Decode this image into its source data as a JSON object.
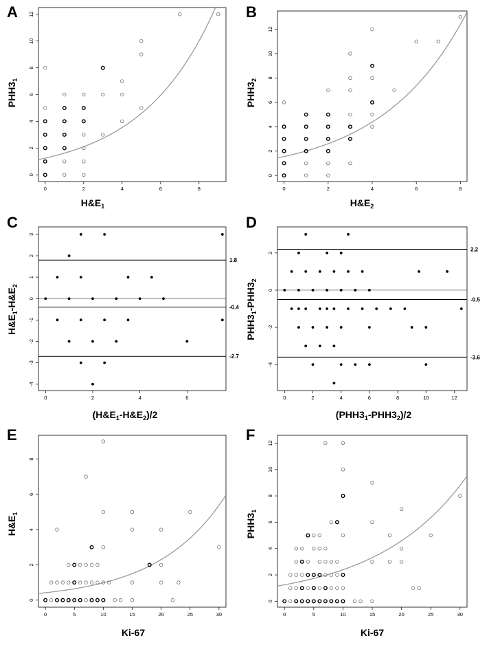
{
  "chart_data": [
    {
      "id": "A",
      "type": "scatter",
      "panel_label": "A",
      "xlabel": {
        "main": "H&E",
        "sub": "1"
      },
      "ylabel": {
        "main": "PHH3",
        "sub": "1"
      },
      "xlim": [
        -0.35,
        9.4
      ],
      "ylim": [
        -0.5,
        12.5
      ],
      "xticks": [
        0,
        2,
        4,
        6,
        8
      ],
      "yticks": [
        0,
        2,
        4,
        6,
        8,
        10,
        12
      ],
      "points": [
        [
          0,
          0
        ],
        [
          0,
          1
        ],
        [
          0,
          2
        ],
        [
          0,
          3
        ],
        [
          0,
          4
        ],
        [
          0,
          5
        ],
        [
          0,
          8
        ],
        [
          1,
          0
        ],
        [
          1,
          1
        ],
        [
          1,
          2
        ],
        [
          1,
          3
        ],
        [
          1,
          4
        ],
        [
          1,
          5
        ],
        [
          1,
          6
        ],
        [
          2,
          0
        ],
        [
          2,
          1
        ],
        [
          2,
          2
        ],
        [
          2,
          3
        ],
        [
          2,
          4
        ],
        [
          2,
          5
        ],
        [
          2,
          6
        ],
        [
          3,
          3
        ],
        [
          3,
          6
        ],
        [
          3,
          8
        ],
        [
          4,
          4
        ],
        [
          4,
          6
        ],
        [
          4,
          7
        ],
        [
          5,
          5
        ],
        [
          5,
          9
        ],
        [
          5,
          10
        ],
        [
          7,
          12
        ],
        [
          9,
          12
        ]
      ],
      "bold_points": [
        [
          0,
          0
        ],
        [
          0,
          1
        ],
        [
          0,
          2
        ],
        [
          0,
          3
        ],
        [
          0,
          4
        ],
        [
          1,
          2
        ],
        [
          1,
          3
        ],
        [
          1,
          4
        ],
        [
          1,
          5
        ],
        [
          2,
          4
        ],
        [
          2,
          5
        ],
        [
          3,
          8
        ]
      ],
      "curve": {
        "a": 1.25,
        "b": 0.26
      }
    },
    {
      "id": "B",
      "type": "scatter",
      "panel_label": "B",
      "xlabel": {
        "main": "H&E",
        "sub": "2"
      },
      "ylabel": {
        "main": "PHH3",
        "sub": "2"
      },
      "xlim": [
        -0.3,
        8.3
      ],
      "ylim": [
        -0.5,
        13.5
      ],
      "xticks": [
        0,
        2,
        4,
        6,
        8
      ],
      "yticks": [
        0,
        2,
        4,
        6,
        8,
        10,
        12
      ],
      "points": [
        [
          0,
          0
        ],
        [
          0,
          1
        ],
        [
          0,
          2
        ],
        [
          0,
          3
        ],
        [
          0,
          4
        ],
        [
          0,
          6
        ],
        [
          1,
          0
        ],
        [
          1,
          1
        ],
        [
          1,
          2
        ],
        [
          1,
          3
        ],
        [
          1,
          4
        ],
        [
          1,
          5
        ],
        [
          2,
          0
        ],
        [
          2,
          1
        ],
        [
          2,
          2
        ],
        [
          2,
          3
        ],
        [
          2,
          4
        ],
        [
          2,
          5
        ],
        [
          2,
          7
        ],
        [
          3,
          1
        ],
        [
          3,
          3
        ],
        [
          3,
          4
        ],
        [
          3,
          5
        ],
        [
          3,
          7
        ],
        [
          3,
          8
        ],
        [
          3,
          10
        ],
        [
          4,
          4
        ],
        [
          4,
          5
        ],
        [
          4,
          6
        ],
        [
          4,
          8
        ],
        [
          4,
          9
        ],
        [
          4,
          12
        ],
        [
          5,
          7
        ],
        [
          6,
          11
        ],
        [
          7,
          11
        ],
        [
          8,
          13
        ]
      ],
      "bold_points": [
        [
          0,
          0
        ],
        [
          0,
          1
        ],
        [
          0,
          2
        ],
        [
          0,
          3
        ],
        [
          0,
          4
        ],
        [
          1,
          2
        ],
        [
          1,
          3
        ],
        [
          1,
          4
        ],
        [
          1,
          5
        ],
        [
          2,
          2
        ],
        [
          2,
          3
        ],
        [
          2,
          4
        ],
        [
          2,
          5
        ],
        [
          3,
          3
        ],
        [
          3,
          4
        ],
        [
          4,
          6
        ],
        [
          4,
          9
        ]
      ],
      "curve": {
        "a": 1.55,
        "b": 0.26
      }
    },
    {
      "id": "C",
      "type": "bland_altman",
      "panel_label": "C",
      "xlabel": {
        "parts": [
          "(H&E",
          "1",
          "-H&E",
          "2",
          ")/2"
        ]
      },
      "ylabel": {
        "parts": [
          "H&E",
          "1",
          "-H&E",
          "2"
        ]
      },
      "xlim": [
        -0.3,
        7.65
      ],
      "ylim": [
        -4.3,
        3.35
      ],
      "xticks": [
        0,
        2,
        4,
        6
      ],
      "yticks": [
        -4,
        -3,
        -2,
        -1,
        0,
        1,
        2,
        3
      ],
      "zero_line": 0,
      "ref_lines": [
        {
          "y": 1.8,
          "label": "1.8"
        },
        {
          "y": -0.4,
          "label": "-0.4"
        },
        {
          "y": -2.7,
          "label": "-2.7"
        }
      ],
      "points": [
        [
          0,
          0
        ],
        [
          0.5,
          1
        ],
        [
          0.5,
          -1
        ],
        [
          1,
          2
        ],
        [
          1,
          0
        ],
        [
          1,
          -2
        ],
        [
          1.5,
          3
        ],
        [
          1.5,
          1
        ],
        [
          1.5,
          -1
        ],
        [
          1.5,
          -3
        ],
        [
          2,
          0
        ],
        [
          2,
          -2
        ],
        [
          2,
          -4
        ],
        [
          2.5,
          3
        ],
        [
          2.5,
          -1
        ],
        [
          2.5,
          -3
        ],
        [
          3,
          0
        ],
        [
          3,
          -2
        ],
        [
          3.5,
          1
        ],
        [
          3.5,
          -1
        ],
        [
          4,
          0
        ],
        [
          4.5,
          1
        ],
        [
          5,
          0
        ],
        [
          6,
          -2
        ],
        [
          7.5,
          3
        ],
        [
          7.5,
          -1
        ]
      ]
    },
    {
      "id": "D",
      "type": "bland_altman",
      "panel_label": "D",
      "xlabel": {
        "parts": [
          "(PHH3",
          "1",
          "-PHH3",
          "2",
          ")/2"
        ]
      },
      "ylabel": {
        "parts": [
          "PHH3",
          "1",
          "-PHH3",
          "2"
        ]
      },
      "xlim": [
        -0.5,
        12.9
      ],
      "ylim": [
        -5.4,
        3.4
      ],
      "xticks": [
        0,
        2,
        4,
        6,
        8,
        10,
        12
      ],
      "yticks": [
        -4,
        -2,
        0,
        2
      ],
      "zero_line": 0,
      "ref_lines": [
        {
          "y": 2.2,
          "label": "2.2"
        },
        {
          "y": -0.5,
          "label": "-0.5"
        },
        {
          "y": -3.6,
          "label": "-3.6"
        }
      ],
      "points": [
        [
          0,
          0
        ],
        [
          0.5,
          1
        ],
        [
          0.5,
          -1
        ],
        [
          1,
          2
        ],
        [
          1,
          0
        ],
        [
          1,
          -1
        ],
        [
          1,
          -2
        ],
        [
          1.5,
          3
        ],
        [
          1.5,
          1
        ],
        [
          1.5,
          -1
        ],
        [
          1.5,
          -3
        ],
        [
          2,
          0
        ],
        [
          2,
          -2
        ],
        [
          2,
          -4
        ],
        [
          2.5,
          1
        ],
        [
          2.5,
          -1
        ],
        [
          2.5,
          -3
        ],
        [
          3,
          2
        ],
        [
          3,
          0
        ],
        [
          3,
          -1
        ],
        [
          3,
          -2
        ],
        [
          3.5,
          1
        ],
        [
          3.5,
          -1
        ],
        [
          3.5,
          -3
        ],
        [
          3.5,
          -5
        ],
        [
          4,
          2
        ],
        [
          4,
          0
        ],
        [
          4,
          -2
        ],
        [
          4,
          -4
        ],
        [
          4.5,
          3
        ],
        [
          4.5,
          1
        ],
        [
          4.5,
          -1
        ],
        [
          5,
          0
        ],
        [
          5,
          -4
        ],
        [
          5.5,
          1
        ],
        [
          5.5,
          -1
        ],
        [
          6,
          0
        ],
        [
          6,
          -2
        ],
        [
          6,
          -4
        ],
        [
          6.5,
          -1
        ],
        [
          7.5,
          -1
        ],
        [
          8.5,
          -1
        ],
        [
          9,
          -2
        ],
        [
          9.5,
          1
        ],
        [
          10,
          -2
        ],
        [
          10,
          -4
        ],
        [
          11.5,
          1
        ],
        [
          12.5,
          -1
        ]
      ]
    },
    {
      "id": "E",
      "type": "scatter",
      "panel_label": "E",
      "xlabel": {
        "main": "Ki-67",
        "sub": ""
      },
      "ylabel": {
        "main": "H&E",
        "sub": "1"
      },
      "xlim": [
        -1.2,
        31.2
      ],
      "ylim": [
        -0.4,
        9.35
      ],
      "xticks": [
        0,
        5,
        10,
        15,
        20,
        25,
        30
      ],
      "yticks": [
        0,
        2,
        4,
        6,
        8
      ],
      "points": [
        [
          0,
          0
        ],
        [
          1,
          0
        ],
        [
          1,
          1
        ],
        [
          2,
          0
        ],
        [
          2,
          1
        ],
        [
          2,
          4
        ],
        [
          3,
          0
        ],
        [
          3,
          1
        ],
        [
          4,
          0
        ],
        [
          4,
          1
        ],
        [
          4,
          2
        ],
        [
          5,
          0
        ],
        [
          5,
          1
        ],
        [
          5,
          2
        ],
        [
          6,
          0
        ],
        [
          6,
          1
        ],
        [
          6,
          2
        ],
        [
          7,
          0
        ],
        [
          7,
          1
        ],
        [
          7,
          2
        ],
        [
          7,
          7
        ],
        [
          8,
          0
        ],
        [
          8,
          1
        ],
        [
          8,
          2
        ],
        [
          8,
          3
        ],
        [
          9,
          0
        ],
        [
          9,
          1
        ],
        [
          9,
          2
        ],
        [
          10,
          0
        ],
        [
          10,
          1
        ],
        [
          10,
          3
        ],
        [
          10,
          5
        ],
        [
          10,
          9
        ],
        [
          11,
          1
        ],
        [
          12,
          0
        ],
        [
          13,
          0
        ],
        [
          15,
          0
        ],
        [
          15,
          1
        ],
        [
          15,
          4
        ],
        [
          15,
          5
        ],
        [
          18,
          2
        ],
        [
          20,
          1
        ],
        [
          20,
          2
        ],
        [
          20,
          4
        ],
        [
          22,
          0
        ],
        [
          23,
          1
        ],
        [
          25,
          5
        ],
        [
          30,
          3
        ]
      ],
      "bold_points": [
        [
          0,
          0
        ],
        [
          2,
          0
        ],
        [
          3,
          0
        ],
        [
          4,
          0
        ],
        [
          5,
          0
        ],
        [
          5,
          1
        ],
        [
          5,
          2
        ],
        [
          6,
          0
        ],
        [
          8,
          0
        ],
        [
          8,
          3
        ],
        [
          9,
          0
        ],
        [
          10,
          0
        ],
        [
          18,
          2
        ]
      ],
      "curve": {
        "a": 0.42,
        "b": 0.085
      }
    },
    {
      "id": "F",
      "type": "scatter",
      "panel_label": "F",
      "xlabel": {
        "main": "Ki-67",
        "sub": ""
      },
      "ylabel": {
        "main": "PHH3",
        "sub": "1"
      },
      "xlim": [
        -1.2,
        31.2
      ],
      "ylim": [
        -0.45,
        12.6
      ],
      "xticks": [
        0,
        5,
        10,
        15,
        20,
        25,
        30
      ],
      "yticks": [
        0,
        2,
        4,
        6,
        8,
        10,
        12
      ],
      "points": [
        [
          0,
          0
        ],
        [
          1,
          0
        ],
        [
          1,
          1
        ],
        [
          1,
          2
        ],
        [
          2,
          0
        ],
        [
          2,
          1
        ],
        [
          2,
          2
        ],
        [
          2,
          3
        ],
        [
          2,
          4
        ],
        [
          3,
          0
        ],
        [
          3,
          1
        ],
        [
          3,
          2
        ],
        [
          3,
          3
        ],
        [
          3,
          4
        ],
        [
          4,
          0
        ],
        [
          4,
          1
        ],
        [
          4,
          2
        ],
        [
          4,
          3
        ],
        [
          4,
          5
        ],
        [
          5,
          0
        ],
        [
          5,
          1
        ],
        [
          5,
          2
        ],
        [
          5,
          4
        ],
        [
          5,
          5
        ],
        [
          6,
          0
        ],
        [
          6,
          1
        ],
        [
          6,
          2
        ],
        [
          6,
          3
        ],
        [
          6,
          4
        ],
        [
          6,
          5
        ],
        [
          7,
          0
        ],
        [
          7,
          1
        ],
        [
          7,
          2
        ],
        [
          7,
          3
        ],
        [
          7,
          4
        ],
        [
          7,
          12
        ],
        [
          8,
          0
        ],
        [
          8,
          1
        ],
        [
          8,
          2
        ],
        [
          8,
          3
        ],
        [
          8,
          6
        ],
        [
          9,
          0
        ],
        [
          9,
          1
        ],
        [
          9,
          2
        ],
        [
          9,
          3
        ],
        [
          9,
          6
        ],
        [
          10,
          0
        ],
        [
          10,
          1
        ],
        [
          10,
          2
        ],
        [
          10,
          5
        ],
        [
          10,
          8
        ],
        [
          10,
          10
        ],
        [
          10,
          12
        ],
        [
          12,
          0
        ],
        [
          13,
          0
        ],
        [
          15,
          0
        ],
        [
          15,
          3
        ],
        [
          15,
          6
        ],
        [
          15,
          9
        ],
        [
          18,
          3
        ],
        [
          18,
          5
        ],
        [
          20,
          3
        ],
        [
          20,
          4
        ],
        [
          20,
          7
        ],
        [
          22,
          1
        ],
        [
          23,
          1
        ],
        [
          25,
          5
        ],
        [
          30,
          8
        ]
      ],
      "bold_points": [
        [
          0,
          0
        ],
        [
          2,
          0
        ],
        [
          3,
          0
        ],
        [
          3,
          1
        ],
        [
          3,
          3
        ],
        [
          4,
          0
        ],
        [
          4,
          2
        ],
        [
          4,
          5
        ],
        [
          5,
          0
        ],
        [
          5,
          1
        ],
        [
          5,
          2
        ],
        [
          6,
          0
        ],
        [
          6,
          2
        ],
        [
          7,
          0
        ],
        [
          7,
          1
        ],
        [
          8,
          0
        ],
        [
          9,
          0
        ],
        [
          9,
          6
        ],
        [
          10,
          0
        ],
        [
          10,
          2
        ],
        [
          10,
          8
        ]
      ],
      "curve": {
        "a": 1.25,
        "b": 0.065
      }
    }
  ]
}
